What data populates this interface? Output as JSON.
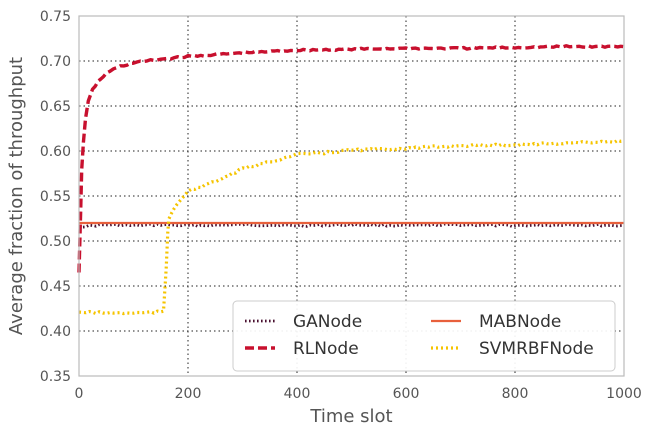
{
  "chart_data": {
    "type": "line",
    "xlabel": "Time slot",
    "ylabel": "Average fraction of throughput",
    "xlim": [
      0,
      1000
    ],
    "ylim": [
      0.35,
      0.75
    ],
    "xticks": [
      "0",
      "200",
      "400",
      "600",
      "800",
      "1000"
    ],
    "yticks": [
      "0.35",
      "0.40",
      "0.45",
      "0.50",
      "0.55",
      "0.60",
      "0.65",
      "0.70",
      "0.75"
    ],
    "grid": true,
    "legend_position": "bottom-right",
    "series": [
      {
        "name": "GANode",
        "color": "#4a1030",
        "style": "dotted",
        "x": [
          0,
          50,
          100,
          150,
          200,
          300,
          400,
          500,
          600,
          700,
          800,
          900,
          1000
        ],
        "y": [
          0.516,
          0.518,
          0.517,
          0.518,
          0.517,
          0.518,
          0.517,
          0.518,
          0.517,
          0.518,
          0.517,
          0.518,
          0.517
        ]
      },
      {
        "name": "RLNode",
        "color": "#c8102e",
        "style": "dashed",
        "x": [
          0,
          3,
          5,
          8,
          12,
          17,
          25,
          35,
          50,
          70,
          100,
          150,
          200,
          300,
          400,
          500,
          600,
          700,
          800,
          900,
          1000
        ],
        "y": [
          0.465,
          0.53,
          0.58,
          0.61,
          0.635,
          0.655,
          0.668,
          0.677,
          0.686,
          0.693,
          0.698,
          0.702,
          0.705,
          0.709,
          0.712,
          0.713,
          0.714,
          0.714,
          0.715,
          0.716,
          0.716
        ]
      },
      {
        "name": "MABNode",
        "color": "#e8603c",
        "style": "solid",
        "x": [
          0,
          1000
        ],
        "y": [
          0.52,
          0.52
        ]
      },
      {
        "name": "SVMRBFNode",
        "color": "#f5c400",
        "style": "dashdot",
        "x": [
          0,
          50,
          100,
          150,
          155,
          160,
          163,
          165,
          170,
          180,
          200,
          250,
          300,
          350,
          400,
          450,
          500,
          600,
          700,
          800,
          900,
          1000
        ],
        "y": [
          0.421,
          0.42,
          0.42,
          0.421,
          0.421,
          0.47,
          0.51,
          0.525,
          0.532,
          0.542,
          0.555,
          0.566,
          0.58,
          0.588,
          0.596,
          0.598,
          0.601,
          0.603,
          0.606,
          0.607,
          0.609,
          0.611
        ]
      }
    ]
  }
}
